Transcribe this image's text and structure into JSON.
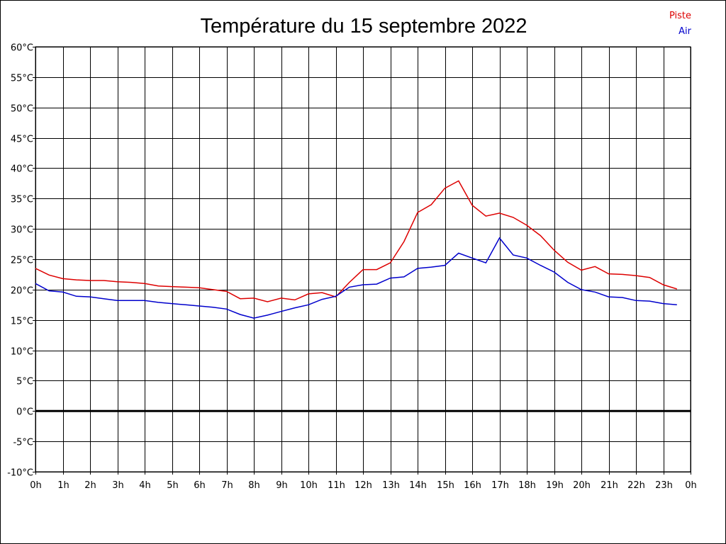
{
  "chart_data": {
    "type": "line",
    "title": "Température du 15 septembre 2022",
    "xlabel": "",
    "ylabel": "",
    "xlim": [
      0,
      24
    ],
    "ylim": [
      -10,
      60
    ],
    "x_ticks": [
      "0h",
      "1h",
      "2h",
      "3h",
      "4h",
      "5h",
      "6h",
      "7h",
      "8h",
      "9h",
      "10h",
      "11h",
      "12h",
      "13h",
      "14h",
      "15h",
      "16h",
      "17h",
      "18h",
      "19h",
      "20h",
      "21h",
      "22h",
      "23h",
      "0h"
    ],
    "y_ticks": [
      "-10°C",
      "-5°C",
      "0°C",
      "5°C",
      "10°C",
      "15°C",
      "20°C",
      "25°C",
      "30°C",
      "35°C",
      "40°C",
      "45°C",
      "50°C",
      "55°C",
      "60°C"
    ],
    "grid": true,
    "legend_position": "top-right",
    "series": [
      {
        "name": "Piste",
        "color": "#dd0000",
        "x": [
          0,
          0.5,
          1,
          1.5,
          2,
          2.5,
          3,
          3.5,
          4,
          4.5,
          5,
          5.5,
          6,
          6.5,
          7,
          7.5,
          8,
          8.5,
          9,
          9.5,
          10,
          10.5,
          11,
          11.5,
          12,
          12.5,
          13,
          13.5,
          14,
          14.5,
          15,
          15.5,
          16,
          16.5,
          17,
          17.5,
          18,
          18.5,
          19,
          19.5,
          20,
          20.5,
          21,
          21.5,
          22,
          22.5,
          23,
          23.5
        ],
        "values": [
          23.5,
          22.4,
          21.8,
          21.6,
          21.5,
          21.5,
          21.3,
          21.2,
          21.0,
          20.6,
          20.5,
          20.4,
          20.3,
          20.0,
          19.7,
          18.5,
          18.6,
          18.0,
          18.6,
          18.3,
          19.3,
          19.5,
          18.8,
          21.2,
          23.3,
          23.3,
          24.4,
          27.9,
          32.7,
          34.0,
          36.7,
          37.9,
          33.9,
          32.1,
          32.6,
          31.9,
          30.6,
          28.9,
          26.5,
          24.5,
          23.2,
          23.8,
          22.6,
          22.5,
          22.3,
          22.0,
          20.8,
          20.1
        ]
      },
      {
        "name": "Air",
        "color": "#0000cc",
        "x": [
          0,
          0.5,
          1,
          1.5,
          2,
          2.5,
          3,
          3.5,
          4,
          4.5,
          5,
          5.5,
          6,
          6.5,
          7,
          7.5,
          8,
          8.5,
          9,
          9.5,
          10,
          10.5,
          11,
          11.5,
          12,
          12.5,
          13,
          13.5,
          14,
          14.5,
          15,
          15.5,
          16,
          16.5,
          17,
          17.5,
          18,
          18.5,
          19,
          19.5,
          20,
          20.5,
          21,
          21.5,
          22,
          22.5,
          23,
          23.5
        ],
        "values": [
          21.0,
          19.8,
          19.6,
          18.9,
          18.8,
          18.5,
          18.2,
          18.2,
          18.2,
          17.9,
          17.7,
          17.5,
          17.3,
          17.1,
          16.8,
          15.9,
          15.3,
          15.8,
          16.4,
          17.0,
          17.5,
          18.4,
          18.9,
          20.4,
          20.8,
          20.9,
          21.9,
          22.1,
          23.5,
          23.7,
          24.0,
          26.0,
          25.2,
          24.4,
          28.5,
          25.7,
          25.2,
          24.0,
          22.9,
          21.2,
          20.0,
          19.6,
          18.8,
          18.7,
          18.2,
          18.1,
          17.7,
          17.5
        ]
      }
    ]
  }
}
